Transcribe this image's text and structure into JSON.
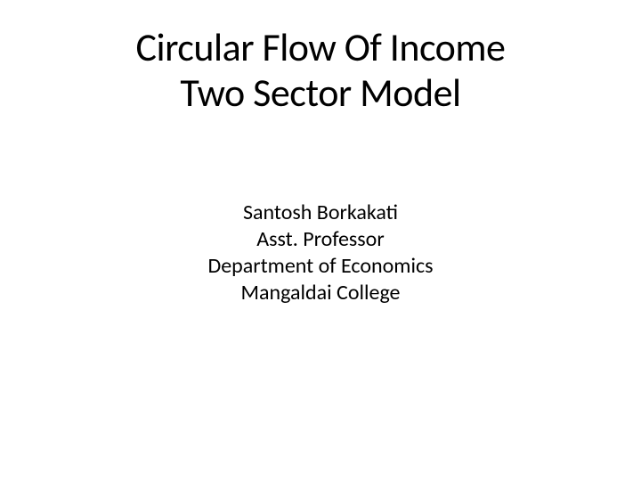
{
  "slide": {
    "title": {
      "line1": "Circular Flow Of Income",
      "line2": "Two Sector Model"
    },
    "author": {
      "name": "Santosh Borkakati",
      "position": "Asst. Professor",
      "department": "Department of Economics",
      "institution": "Mangaldai College"
    }
  },
  "styling": {
    "background_color": "#ffffff",
    "text_color": "#000000",
    "title_fontsize": 44,
    "author_fontsize": 24,
    "font_family": "Calibri"
  }
}
